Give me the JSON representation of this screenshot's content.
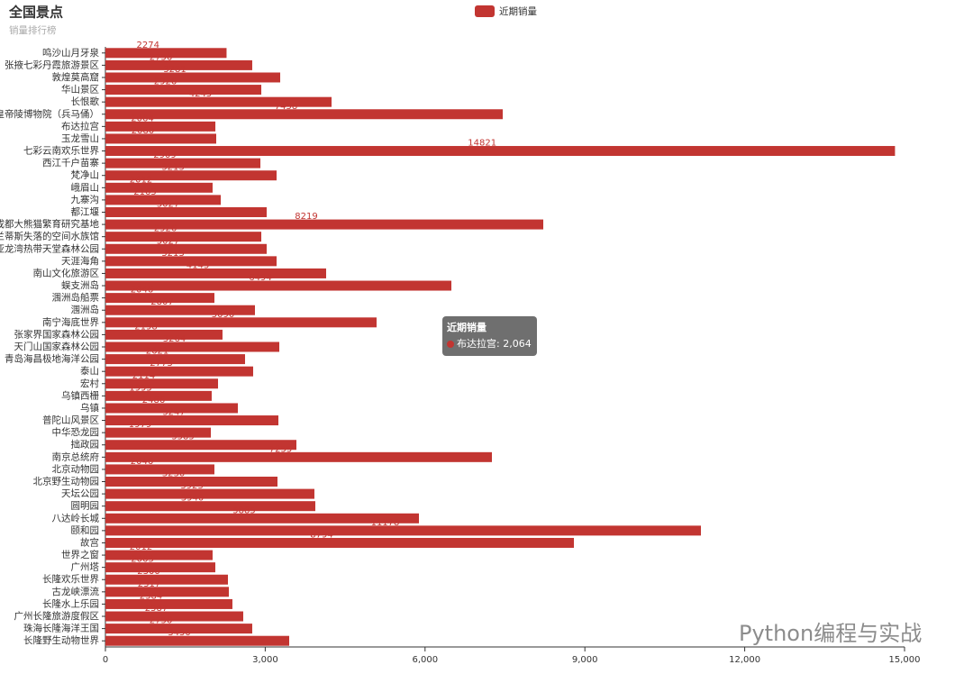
{
  "chart_data": {
    "type": "barh",
    "title": "全国景点",
    "subtitle": "销量排行榜",
    "legend": "近期销量",
    "color": "#c23531",
    "categories": [
      "鸣沙山月牙泉",
      "张掖七彩丹霞旅游景区",
      "敦煌莫高窟",
      "华山景区",
      "长恨歌",
      "秦始皇帝陵博物院（兵马俑）",
      "布达拉宫",
      "玉龙雪山",
      "七彩云南欢乐世界",
      "西江千户苗寨",
      "梵净山",
      "峨眉山",
      "九寨沟",
      "都江堰",
      "成都大熊猫繁育研究基地",
      "亚特兰蒂斯失落的空间水族馆",
      "亚龙湾热带天堂森林公园",
      "天涯海角",
      "南山文化旅游区",
      "蜈支洲岛",
      "涠洲岛船票",
      "涠洲岛",
      "南宁海底世界",
      "张家界国家森林公园",
      "天门山国家森林公园",
      "青岛海昌极地海洋公园",
      "泰山",
      "宏村",
      "乌镇西栅",
      "乌镇",
      "普陀山风景区",
      "中华恐龙园",
      "拙政园",
      "南京总统府",
      "北京动物园",
      "北京野生动物园",
      "天坛公园",
      "圆明园",
      "八达岭长城",
      "颐和园",
      "故宫",
      "世界之窗",
      "广州塔",
      "长隆欢乐世界",
      "古龙峡漂流",
      "长隆水上乐园",
      "广州长隆旅游度假区",
      "珠海长隆海洋王国",
      "长隆野生动物世界"
    ],
    "values": [
      2274,
      2756,
      3281,
      2926,
      4245,
      7458,
      2064,
      2080,
      14821,
      2909,
      3213,
      2012,
      2165,
      3027,
      8219,
      2926,
      3027,
      3213,
      4143,
      6494,
      2046,
      2807,
      5090,
      2198,
      3264,
      2621,
      2773,
      2114,
      1995,
      2486,
      3247,
      1979,
      3585,
      7255,
      2046,
      3230,
      3923,
      3940,
      5885,
      11178,
      8794,
      2012,
      2063,
      2300,
      2317,
      2384,
      2587,
      2756,
      3450
    ],
    "xlim": [
      0,
      15000
    ],
    "xticks": [
      0,
      {
        "value": 3000,
        "label": "3,000"
      },
      {
        "value": 6000,
        "label": "6,000"
      },
      {
        "value": 9000,
        "label": "9,000"
      },
      {
        "value": 12000,
        "label": "12,000"
      },
      {
        "value": 15000,
        "label": "15,000"
      }
    ],
    "tooltip": {
      "title": "近期销量",
      "label": "布达拉宫: 2,064"
    },
    "watermark": "Python编程与实战"
  }
}
